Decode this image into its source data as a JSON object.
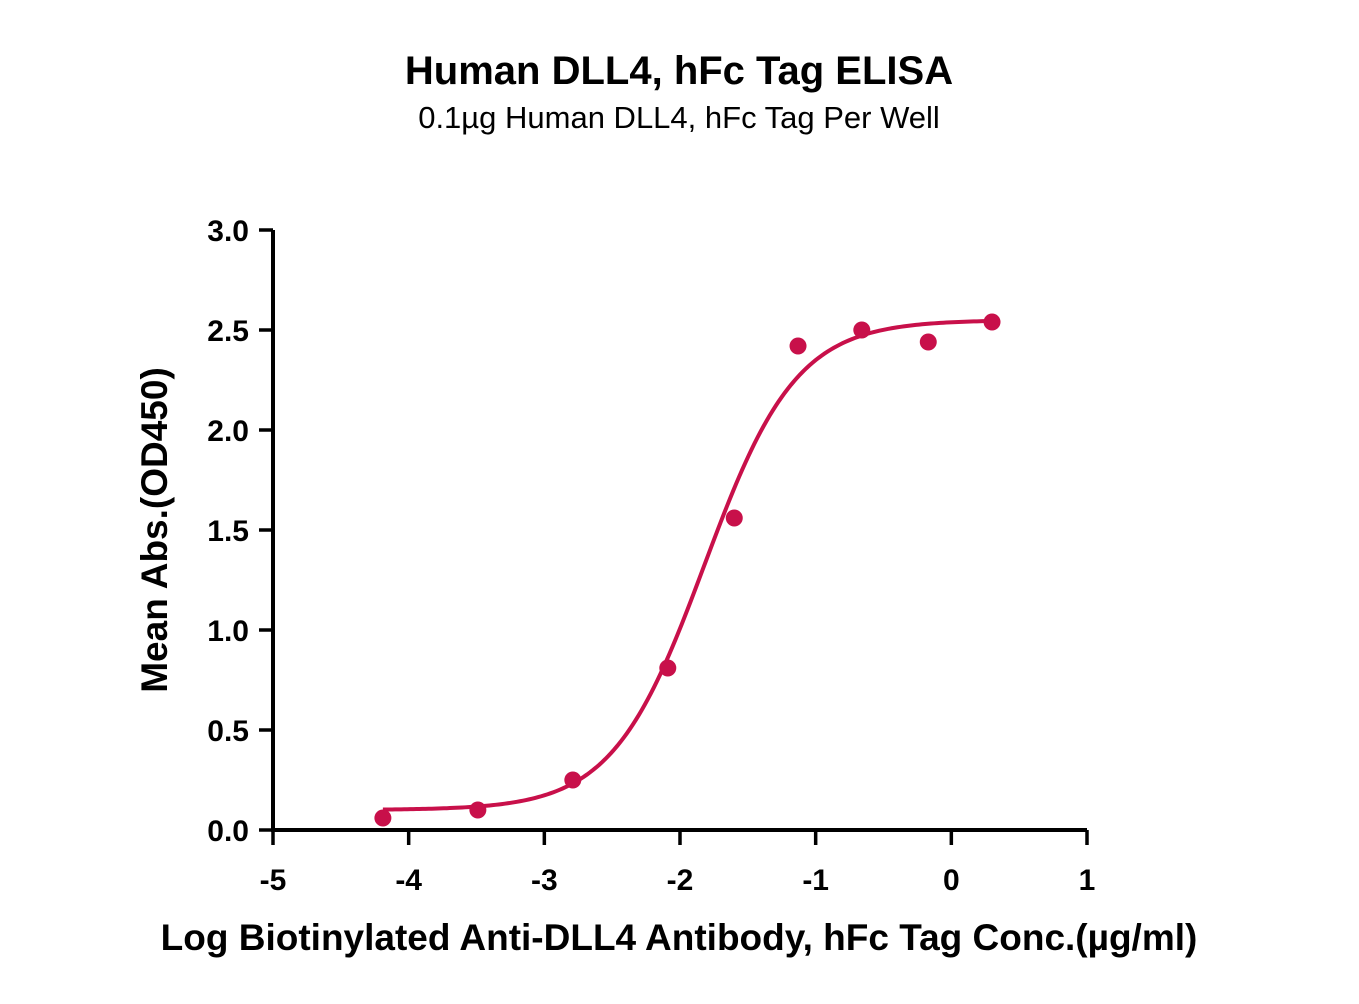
{
  "chart_data": {
    "type": "scatter",
    "title": "Human DLL4, hFc Tag ELISA",
    "subtitle": "0.1µg Human DLL4, hFc Tag Per Well",
    "xlabel": "Log Biotinylated Anti-DLL4 Antibody, hFc Tag Conc.(µg/ml)",
    "ylabel": "Mean Abs.(OD450)",
    "xlim": [
      -5,
      1
    ],
    "ylim": [
      0,
      3.0
    ],
    "x_ticks": [
      -5,
      -4,
      -3,
      -2,
      -1,
      0,
      1
    ],
    "x_tick_labels": [
      "-5",
      "-4",
      "-3",
      "-2",
      "-1",
      "0",
      "1"
    ],
    "y_ticks": [
      0,
      0.5,
      1.0,
      1.5,
      2.0,
      2.5,
      3.0
    ],
    "y_tick_labels": [
      "0.0",
      "0.5",
      "1.0",
      "1.5",
      "2.0",
      "2.5",
      "3.0"
    ],
    "grid": false,
    "color": "#c8104a",
    "series": [
      {
        "x": [
          -4.19,
          -3.49,
          -2.79,
          -2.09,
          -1.6,
          -1.13,
          -0.66,
          -0.17,
          0.3
        ],
        "y": [
          0.06,
          0.1,
          0.25,
          0.81,
          1.56,
          2.42,
          2.5,
          2.44,
          2.54
        ],
        "fit": {
          "model": "4PL",
          "bottom": 0.1,
          "top": 2.55,
          "logEC50": -1.82,
          "hill": 1.28
        }
      }
    ]
  }
}
